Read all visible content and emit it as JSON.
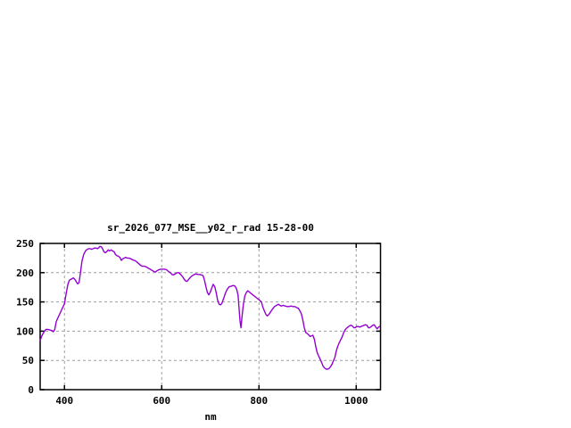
{
  "window": {
    "background": "#ffffff"
  },
  "chart_data": {
    "type": "line",
    "title": "sr_2026_077_MSE__y02_r_rad 15-28-00",
    "xlabel": "nm",
    "ylabel": "",
    "xlim": [
      350,
      1050
    ],
    "ylim": [
      0,
      250
    ],
    "xticks": [
      400,
      600,
      800,
      1000
    ],
    "yticks": [
      0,
      50,
      100,
      150,
      200,
      250
    ],
    "grid": true,
    "legend_position": "none",
    "colors": {
      "line": "#9400d3",
      "grid": "#9e9e9e",
      "border": "#000000",
      "background": "#ffffff"
    },
    "series": [
      {
        "name": "sr_2026_077_MSE__y02_r_rad",
        "color": "#9400d3",
        "x": [
          350,
          353,
          356,
          359,
          362,
          366,
          370,
          374,
          377,
          380,
          383,
          386,
          390,
          395,
          400,
          403,
          407,
          410,
          414,
          418,
          421,
          424,
          427,
          430,
          433,
          436,
          440,
          444,
          447,
          450,
          453,
          456,
          459,
          462,
          465,
          468,
          471,
          473,
          476,
          479,
          481,
          484,
          487,
          490,
          493,
          496,
          499,
          502,
          505,
          508,
          511,
          514,
          517,
          520,
          523,
          526,
          529,
          532,
          536,
          540,
          544,
          548,
          552,
          556,
          560,
          564,
          568,
          572,
          576,
          580,
          584,
          587,
          590,
          594,
          598,
          602,
          606,
          610,
          614,
          618,
          621,
          624,
          628,
          632,
          635,
          639,
          643,
          646,
          649,
          652,
          655,
          659,
          663,
          667,
          670,
          674,
          678,
          682,
          685,
          688,
          691,
          694,
          697,
          700,
          703,
          706,
          709,
          712,
          715,
          718,
          721,
          724,
          727,
          731,
          735,
          739,
          743,
          747,
          751,
          754,
          757,
          759,
          761,
          763,
          765,
          768,
          771,
          774,
          777,
          780,
          783,
          786,
          789,
          792,
          795,
          798,
          801,
          805,
          808,
          811,
          814,
          817,
          820,
          824,
          828,
          832,
          836,
          840,
          843,
          846,
          850,
          854,
          858,
          862,
          866,
          870,
          874,
          878,
          881,
          884,
          887,
          890,
          893,
          896,
          899,
          902,
          905,
          908,
          911,
          914,
          917,
          920,
          923,
          926,
          929,
          932,
          935,
          938,
          941,
          944,
          947,
          950,
          953,
          956,
          959,
          962,
          965,
          968,
          971,
          974,
          977,
          980,
          983,
          986,
          989,
          992,
          995,
          998,
          1001,
          1004,
          1007,
          1010,
          1013,
          1016,
          1019,
          1022,
          1025,
          1028,
          1031,
          1034,
          1037,
          1040,
          1043,
          1046,
          1048
        ],
        "y": [
          84,
          91,
          96,
          100,
          103,
          103,
          102,
          101,
          99,
          103,
          116,
          122,
          129,
          138,
          147,
          162,
          180,
          187,
          189,
          191,
          189,
          185,
          181,
          183,
          200,
          220,
          232,
          238,
          240,
          241,
          241,
          240,
          241,
          242,
          242,
          241,
          243,
          245,
          244,
          240,
          236,
          234,
          236,
          239,
          237,
          239,
          237,
          236,
          231,
          229,
          228,
          226,
          221,
          224,
          225,
          226,
          225,
          225,
          224,
          222,
          221,
          219,
          216,
          213,
          211,
          211,
          210,
          208,
          206,
          204,
          202,
          201,
          203,
          205,
          206,
          206,
          206,
          205,
          202,
          200,
          197,
          196,
          198,
          200,
          200,
          197,
          193,
          189,
          186,
          185,
          188,
          192,
          195,
          197,
          198,
          197,
          197,
          196,
          195,
          187,
          176,
          166,
          162,
          167,
          174,
          180,
          176,
          166,
          153,
          146,
          145,
          148,
          155,
          165,
          172,
          176,
          177,
          178,
          177,
          172,
          162,
          140,
          118,
          106,
          124,
          146,
          160,
          166,
          169,
          167,
          165,
          163,
          161,
          159,
          157,
          155,
          153,
          150,
          141,
          135,
          129,
          126,
          128,
          133,
          138,
          142,
          144,
          146,
          144,
          143,
          144,
          143,
          142,
          142,
          143,
          142,
          142,
          140,
          139,
          135,
          130,
          120,
          107,
          98,
          96,
          94,
          91,
          92,
          93,
          86,
          73,
          63,
          57,
          52,
          46,
          40,
          37,
          35,
          35,
          36,
          39,
          43,
          49,
          55,
          66,
          74,
          80,
          85,
          90,
          97,
          102,
          105,
          107,
          109,
          110,
          109,
          106,
          106,
          108,
          108,
          107,
          108,
          109,
          110,
          111,
          110,
          106,
          106,
          108,
          110,
          111,
          107,
          104,
          107,
          108
        ]
      }
    ]
  }
}
